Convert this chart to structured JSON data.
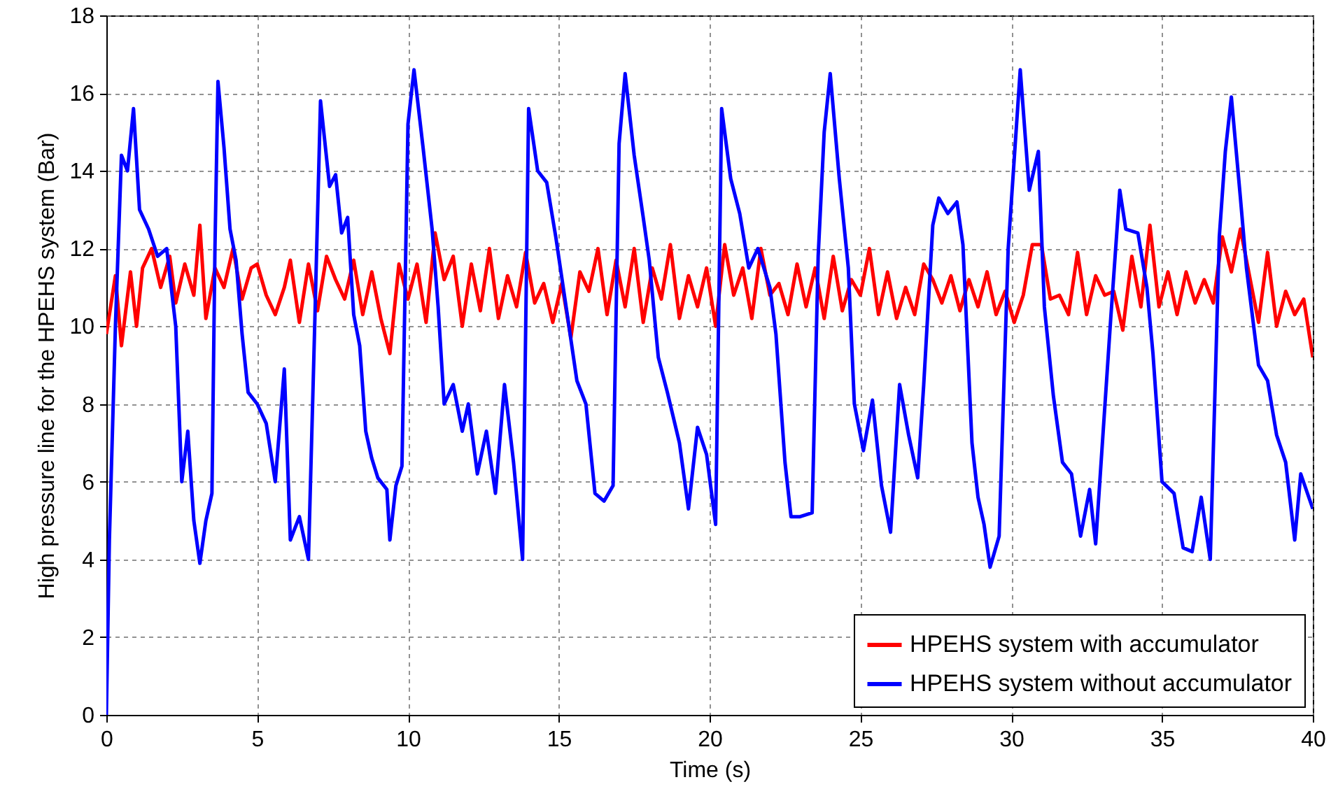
{
  "chart_data": {
    "type": "line",
    "xlabel": "Time (s)",
    "ylabel": "High pressure line for the HPEHS system (Bar)",
    "xlim": [
      0,
      40
    ],
    "xticks": [
      0,
      5,
      10,
      15,
      20,
      25,
      30,
      35,
      40
    ],
    "ylim": [
      0,
      18
    ],
    "yticks": [
      0,
      2,
      4,
      6,
      8,
      10,
      12,
      14,
      16,
      18
    ],
    "grid": true,
    "legend": "bottom right",
    "series": [
      {
        "name": "HPEHS system with accumulator",
        "color": "#ff0000",
        "x": [
          0,
          0.3,
          0.5,
          0.8,
          1.0,
          1.2,
          1.5,
          1.8,
          2.1,
          2.3,
          2.6,
          2.9,
          3.1,
          3.3,
          3.6,
          3.9,
          4.2,
          4.5,
          4.8,
          5.0,
          5.3,
          5.6,
          5.9,
          6.1,
          6.4,
          6.7,
          7.0,
          7.3,
          7.6,
          7.9,
          8.2,
          8.5,
          8.8,
          9.1,
          9.4,
          9.7,
          10.0,
          10.3,
          10.6,
          10.9,
          11.2,
          11.5,
          11.8,
          12.1,
          12.4,
          12.7,
          13.0,
          13.3,
          13.6,
          13.9,
          14.2,
          14.5,
          14.8,
          15.1,
          15.4,
          15.7,
          16.0,
          16.3,
          16.6,
          16.9,
          17.2,
          17.5,
          17.8,
          18.1,
          18.4,
          18.7,
          19.0,
          19.3,
          19.6,
          19.9,
          20.2,
          20.5,
          20.8,
          21.1,
          21.4,
          21.7,
          22.0,
          22.3,
          22.6,
          22.9,
          23.2,
          23.5,
          23.8,
          24.1,
          24.4,
          24.7,
          25.0,
          25.3,
          25.6,
          25.9,
          26.2,
          26.5,
          26.8,
          27.1,
          27.4,
          27.7,
          28.0,
          28.3,
          28.6,
          28.9,
          29.2,
          29.5,
          29.8,
          30.1,
          30.4,
          30.7,
          31.0,
          31.3,
          31.6,
          31.9,
          32.2,
          32.5,
          32.8,
          33.1,
          33.4,
          33.7,
          34.0,
          34.3,
          34.6,
          34.9,
          35.2,
          35.5,
          35.8,
          36.1,
          36.4,
          36.7,
          37.0,
          37.3,
          37.6,
          37.9,
          38.2,
          38.5,
          38.8,
          39.1,
          39.4,
          39.7,
          40.0
        ],
        "values": [
          9.8,
          11.3,
          9.5,
          11.4,
          10,
          11.5,
          12,
          11,
          11.8,
          10.6,
          11.6,
          10.8,
          12.6,
          10.2,
          11.5,
          11,
          12,
          10.7,
          11.5,
          11.6,
          10.8,
          10.3,
          11,
          11.7,
          10.1,
          11.6,
          10.4,
          11.8,
          11.2,
          10.7,
          11.7,
          10.3,
          11.4,
          10.2,
          9.3,
          11.6,
          10.7,
          11.6,
          10.1,
          12.4,
          11.2,
          11.8,
          10,
          11.6,
          10.4,
          12,
          10.2,
          11.3,
          10.5,
          11.9,
          10.6,
          11.1,
          10.1,
          11.1,
          9.7,
          11.4,
          10.9,
          12,
          10.3,
          11.7,
          10.5,
          12,
          10.1,
          11.5,
          10.7,
          12.1,
          10.2,
          11.3,
          10.5,
          11.5,
          10,
          12.1,
          10.8,
          11.5,
          10.2,
          12,
          10.8,
          11.1,
          10.3,
          11.6,
          10.5,
          11.5,
          10.2,
          11.8,
          10.4,
          11.2,
          10.8,
          12,
          10.3,
          11.4,
          10.2,
          11,
          10.3,
          11.6,
          11.2,
          10.6,
          11.3,
          10.4,
          11.2,
          10.5,
          11.4,
          10.3,
          10.9,
          10.1,
          10.8,
          12.1,
          12.1,
          10.7,
          10.8,
          10.3,
          11.9,
          10.3,
          11.3,
          10.8,
          10.9,
          9.9,
          11.8,
          10.5,
          12.6,
          10.5,
          11.4,
          10.3,
          11.4,
          10.6,
          11.2,
          10.6,
          12.3,
          11.4,
          12.5,
          11.3,
          10.1,
          11.9,
          10,
          10.9,
          10.3,
          10.7,
          9.2
        ]
      },
      {
        "name": "HPEHS system without accumulator",
        "color": "#0000ff",
        "x": [
          0,
          0.1,
          0.3,
          0.5,
          0.7,
          0.9,
          1.1,
          1.4,
          1.7,
          2.0,
          2.3,
          2.5,
          2.7,
          2.9,
          3.1,
          3.3,
          3.5,
          3.6,
          3.7,
          3.9,
          4.1,
          4.3,
          4.5,
          4.7,
          5.0,
          5.3,
          5.6,
          5.9,
          6.1,
          6.4,
          6.7,
          6.9,
          7.1,
          7.4,
          7.6,
          7.8,
          8.0,
          8.2,
          8.4,
          8.6,
          8.8,
          9.0,
          9.3,
          9.4,
          9.6,
          9.8,
          10.0,
          10.2,
          10.5,
          10.8,
          11.0,
          11.2,
          11.5,
          11.8,
          12.0,
          12.3,
          12.6,
          12.9,
          13.2,
          13.5,
          13.8,
          14.0,
          14.3,
          14.6,
          14.9,
          15.3,
          15.6,
          15.9,
          16.2,
          16.5,
          16.8,
          17.0,
          17.2,
          17.5,
          17.8,
          18.0,
          18.3,
          18.6,
          19.0,
          19.3,
          19.6,
          19.9,
          20.2,
          20.4,
          20.7,
          21.0,
          21.3,
          21.6,
          22.0,
          22.2,
          22.5,
          22.7,
          23.0,
          23.4,
          23.6,
          23.8,
          24.0,
          24.3,
          24.6,
          24.8,
          25.1,
          25.4,
          25.7,
          26.0,
          26.3,
          26.6,
          26.9,
          27.1,
          27.4,
          27.6,
          27.9,
          28.2,
          28.4,
          28.7,
          28.9,
          29.1,
          29.3,
          29.6,
          29.9,
          30.3,
          30.6,
          30.9,
          31.1,
          31.4,
          31.7,
          32.0,
          32.3,
          32.6,
          32.8,
          33.3,
          33.6,
          33.8,
          34.2,
          34.5,
          34.7,
          35.0,
          35.4,
          35.7,
          36.0,
          36.3,
          36.6,
          36.9,
          37.1,
          37.3,
          37.6,
          37.8,
          38.2,
          38.5,
          38.8,
          39.1,
          39.4,
          39.6,
          40.0
        ],
        "values": [
          0,
          4.5,
          10,
          14.4,
          14,
          15.6,
          13,
          12.5,
          11.8,
          12,
          10,
          6,
          7.3,
          5,
          3.9,
          5,
          5.7,
          12,
          16.3,
          14.6,
          12.5,
          11.7,
          9.8,
          8.3,
          8,
          7.5,
          6,
          8.9,
          4.5,
          5.1,
          4,
          9.8,
          15.8,
          13.6,
          13.9,
          12.4,
          12.8,
          10.3,
          9.5,
          7.3,
          6.6,
          6.1,
          5.8,
          4.5,
          5.9,
          6.4,
          15.2,
          16.6,
          14.6,
          12.5,
          10.5,
          8,
          8.5,
          7.3,
          8,
          6.2,
          7.3,
          5.7,
          8.5,
          6.5,
          4,
          15.6,
          14,
          13.7,
          12.3,
          10.2,
          8.6,
          8,
          5.7,
          5.5,
          5.9,
          14.7,
          16.5,
          14.4,
          12.8,
          11.7,
          9.2,
          8.3,
          7,
          5.3,
          7.4,
          6.7,
          4.9,
          15.6,
          13.8,
          12.9,
          11.5,
          12,
          11,
          9.8,
          6.5,
          5.1,
          5.1,
          5.2,
          11.8,
          15,
          16.5,
          13.8,
          11.5,
          8,
          6.8,
          8.1,
          5.9,
          4.7,
          8.5,
          7.2,
          6.1,
          8.5,
          12.6,
          13.3,
          12.9,
          13.2,
          12.1,
          7,
          5.6,
          4.9,
          3.8,
          4.6,
          12,
          16.6,
          13.5,
          14.5,
          10.5,
          8.2,
          6.5,
          6.2,
          4.6,
          5.8,
          4.4,
          10.2,
          13.5,
          12.5,
          12.4,
          11,
          9.3,
          6,
          5.7,
          4.3,
          4.2,
          5.6,
          4,
          12.3,
          14.5,
          15.9,
          13.3,
          11.5,
          9,
          8.6,
          7.2,
          6.5,
          4.5,
          6.2,
          5.3
        ]
      }
    ]
  }
}
